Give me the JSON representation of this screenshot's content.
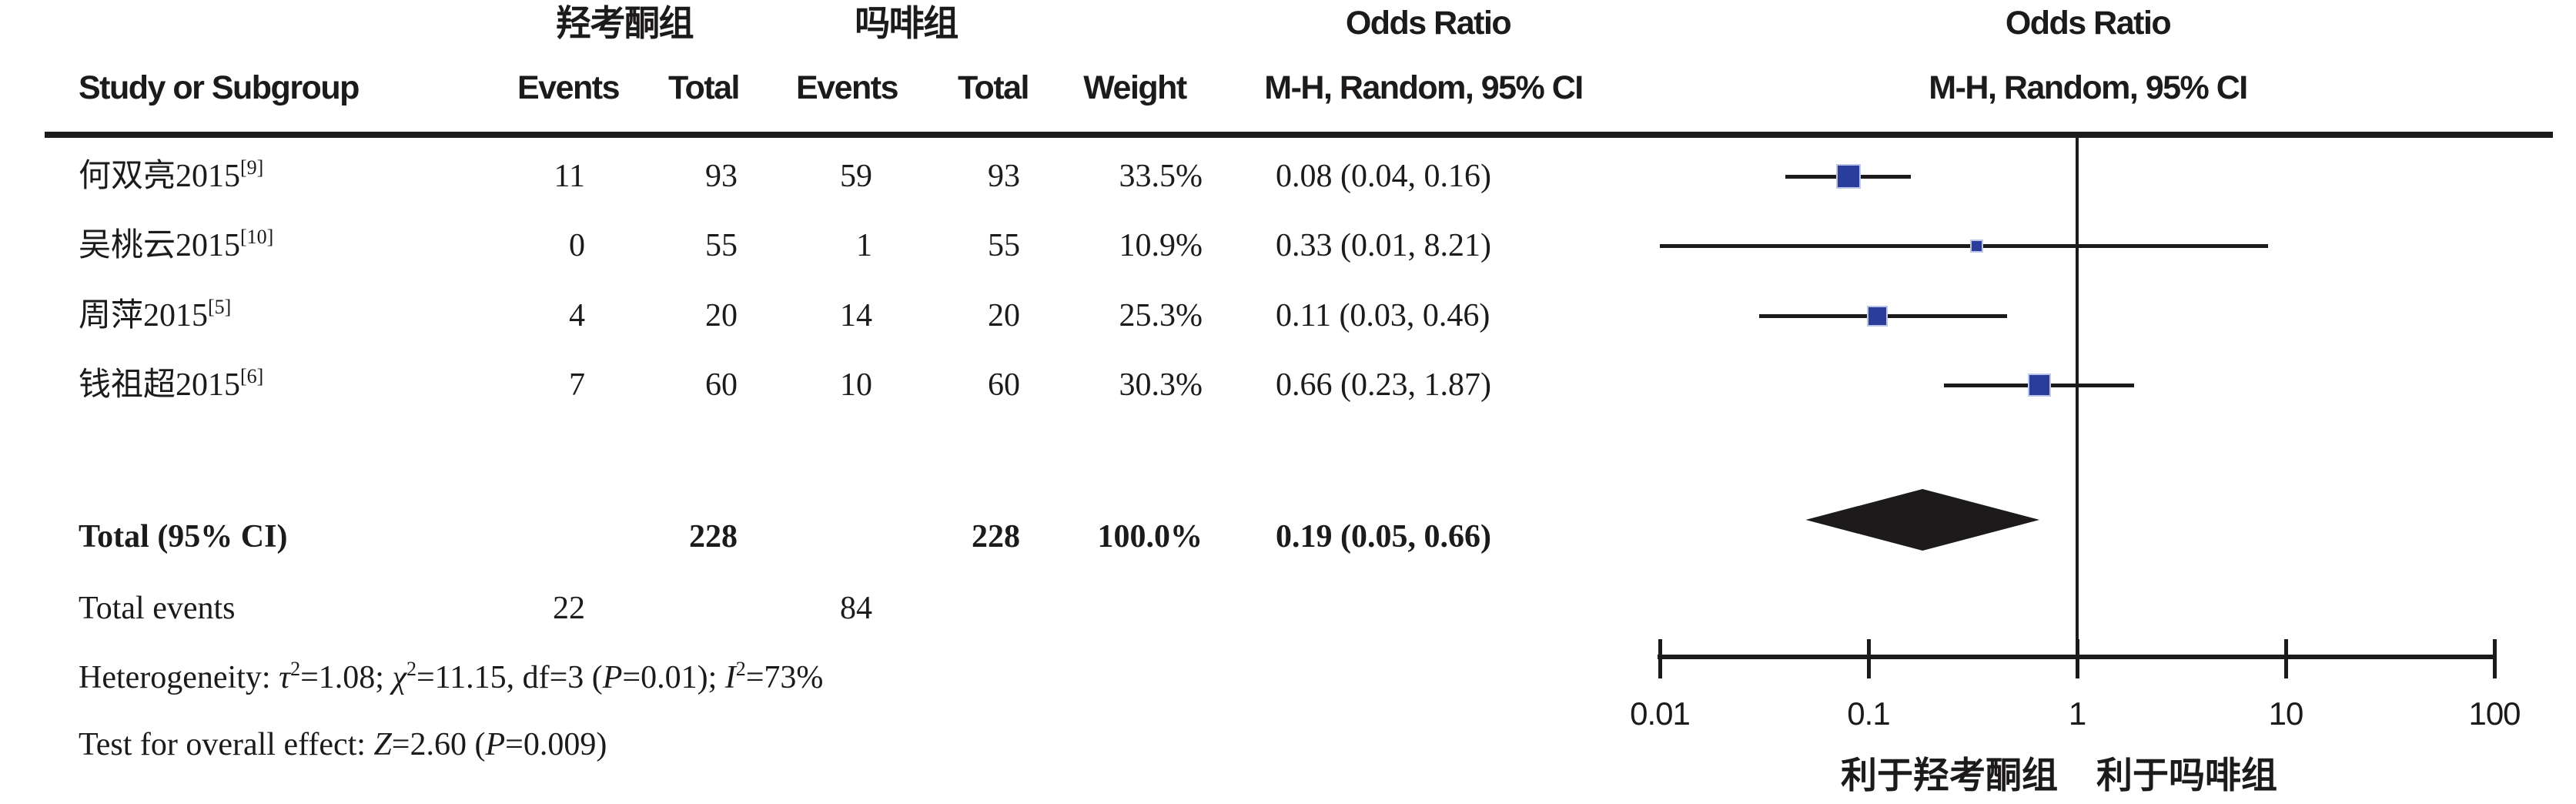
{
  "header": {
    "group1": "羟考酮组",
    "group2": "吗啡组",
    "odds_ratio_left": "Odds Ratio",
    "odds_ratio_right": "Odds Ratio",
    "study_col": "Study or Subgroup",
    "events_col_1": "Events",
    "total_col_1": "Total",
    "events_col_2": "Events",
    "total_col_2": "Total",
    "weight_col": "Weight",
    "mh_col_left": "M-H, Random, 95% CI",
    "mh_col_right": "M-H, Random, 95% CI"
  },
  "rows": [
    {
      "study": "何双亮2015",
      "ref": "[9]",
      "events1": "11",
      "total1": "93",
      "events2": "59",
      "total2": "93",
      "weight": "33.5%",
      "or_ci": "0.08 (0.04, 0.16)"
    },
    {
      "study": "吴桃云2015",
      "ref": "[10]",
      "events1": "0",
      "total1": "55",
      "events2": "1",
      "total2": "55",
      "weight": "10.9%",
      "or_ci": "0.33 (0.01, 8.21)"
    },
    {
      "study": "周萍2015",
      "ref": "[5]",
      "events1": "4",
      "total1": "20",
      "events2": "14",
      "total2": "20",
      "weight": "25.3%",
      "or_ci": "0.11 (0.03, 0.46)"
    },
    {
      "study": "钱祖超2015",
      "ref": "[6]",
      "events1": "7",
      "total1": "60",
      "events2": "10",
      "total2": "60",
      "weight": "30.3%",
      "or_ci": "0.66 (0.23, 1.87)"
    }
  ],
  "total_row": {
    "label": "Total (95% CI)",
    "total1": "228",
    "total2": "228",
    "weight": "100.0%",
    "or_ci": "0.19 (0.05, 0.66)"
  },
  "total_events": {
    "label": "Total events",
    "events1": "22",
    "events2": "84"
  },
  "heterogeneity": {
    "label": "Heterogeneity: ",
    "tau": "τ",
    "sup1": "2",
    "seg1": "=1.08; ",
    "chi": "χ",
    "sup2": "2",
    "seg2": "=11.15, df=3 (",
    "p": "P",
    "seg3": "=0.01); ",
    "i": "I",
    "sup3": "2",
    "seg4": "=73%"
  },
  "overall_effect": {
    "label": "Test for overall effect: ",
    "z": "Z",
    "seg1": "=2.60 (",
    "p": "P",
    "seg2": "=0.009)"
  },
  "axis": {
    "tick_labels": [
      "0.01",
      "0.1",
      "1",
      "10",
      "100"
    ],
    "favors_left": "利于羟考酮组",
    "favors_right": "利于吗啡组"
  },
  "chart_data": {
    "type": "forest",
    "x_scale": "log10",
    "x_ticks": [
      0.01,
      0.1,
      1,
      10,
      100
    ],
    "null_line": 1,
    "effect_measure": "Odds Ratio, M-H, Random, 95% CI",
    "studies": [
      {
        "name": "何双亮2015[9]",
        "or": 0.08,
        "ci_low": 0.04,
        "ci_high": 0.16,
        "weight_pct": 33.5
      },
      {
        "name": "吴桃云2015[10]",
        "or": 0.33,
        "ci_low": 0.01,
        "ci_high": 8.21,
        "weight_pct": 10.9
      },
      {
        "name": "周萍2015[5]",
        "or": 0.11,
        "ci_low": 0.03,
        "ci_high": 0.46,
        "weight_pct": 25.3
      },
      {
        "name": "钱祖超2015[6]",
        "or": 0.66,
        "ci_low": 0.23,
        "ci_high": 1.87,
        "weight_pct": 30.3
      }
    ],
    "total": {
      "name": "Total (95% CI)",
      "or": 0.19,
      "ci_low": 0.05,
      "ci_high": 0.66,
      "weight_pct": 100.0
    },
    "favors_left": "利于羟考酮组",
    "favors_right": "利于吗啡组",
    "marker_color": "#2b3d9a",
    "diamond_color": "#1d1a1b"
  }
}
